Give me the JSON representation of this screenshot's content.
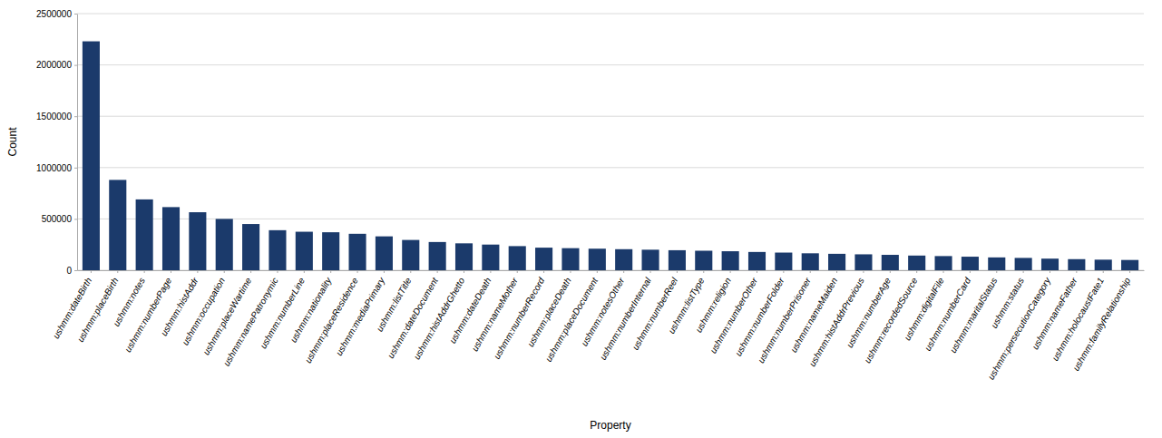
{
  "chart_data": {
    "type": "bar",
    "categories": [
      "ushmm:dateBirth",
      "ushmm:placeBirth",
      "ushmm:notes",
      "ushmm:numberPage",
      "ushmm:histAddr",
      "ushmm:occupation",
      "ushmm:placeWartime",
      "ushmm:namePatronymic",
      "ushmm:numberLine",
      "ushmm:nationality",
      "ushmm:placeResidence",
      "ushmm:mediaPrimary",
      "ushmm:listTitle",
      "ushmm:dateDocument",
      "ushmm:histAddrGhetto",
      "ushmm:dateDeath",
      "ushmm:nameMother",
      "ushmm:numberRecord",
      "ushmm:placeDeath",
      "ushmm:placeDocument",
      "ushmm:notesOther",
      "ushmm:numberInternal",
      "ushmm:numberReel",
      "ushmm:listType",
      "ushmm:religion",
      "ushmm:numberOther",
      "ushmm:numberFolder",
      "ushmm:numberPrisoner",
      "ushmm:nameMaiden",
      "ushmm:histAddrPrevious",
      "ushmm:numberAge",
      "ushmm:recordedSource",
      "ushmm:digitalFile",
      "ushmm:numberCard",
      "ushmm:maritalStatus",
      "ushmm:status",
      "ushmm:persecutionCategory",
      "ushmm:nameFather",
      "ushmm:holocaustFate1",
      "ushmm:familyRelationship"
    ],
    "values": [
      2230000,
      880000,
      690000,
      615000,
      565000,
      500000,
      450000,
      390000,
      375000,
      370000,
      355000,
      330000,
      295000,
      275000,
      262000,
      250000,
      235000,
      220000,
      215000,
      210000,
      205000,
      200000,
      195000,
      190000,
      185000,
      178000,
      172000,
      165000,
      160000,
      155000,
      150000,
      143000,
      138000,
      132000,
      125000,
      120000,
      113000,
      108000,
      103000,
      100000
    ],
    "color": "#1b3a6b",
    "xlabel": "Property",
    "ylabel": "Count",
    "ylim": [
      0,
      2500000
    ],
    "yticks": [
      0,
      500000,
      1000000,
      1500000,
      2000000,
      2500000
    ],
    "grid": true
  }
}
